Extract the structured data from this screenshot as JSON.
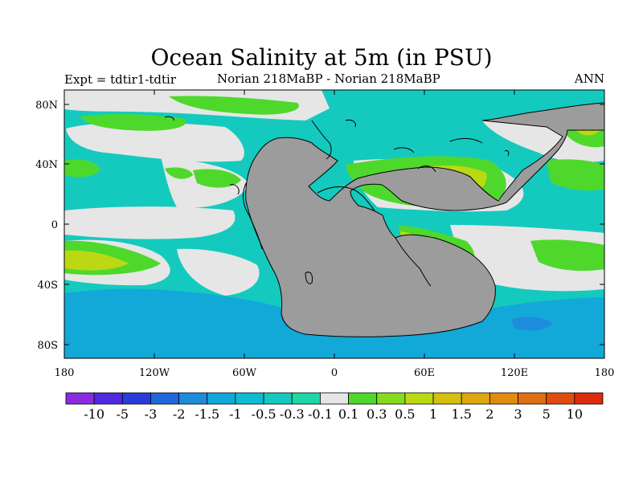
{
  "figure": {
    "title": "Ocean Salinity at 5m (in PSU)",
    "left_label": "Expt = tdtir1-tdtir",
    "center_label": "Norian   218MaBP - Norian   218MaBP",
    "right_label": "ANN"
  },
  "axes": {
    "lat_ticks": [
      "80N",
      "40N",
      "0",
      "40S",
      "80S"
    ],
    "lon_ticks": [
      "180",
      "120W",
      "60W",
      "0",
      "60E",
      "120E",
      "180"
    ]
  },
  "colorbar": {
    "labels": [
      "-10",
      "-5",
      "-3",
      "-2",
      "-1.5",
      "-1",
      "-0.5",
      "-0.3",
      "-0.1",
      "0.1",
      "0.3",
      "0.5",
      "1",
      "1.5",
      "2",
      "3",
      "5",
      "10"
    ],
    "colors": [
      "#8a2be2",
      "#5028e0",
      "#2a3bdc",
      "#1e66dc",
      "#1e8cdc",
      "#12a8d8",
      "#0fbcd4",
      "#14cabe",
      "#1fd6a6",
      "#e6e6e6",
      "#4fd82c",
      "#86dc1c",
      "#bcd814",
      "#d4c010",
      "#dca80e",
      "#e08c10",
      "#e06e12",
      "#e04c10",
      "#dc2c0c"
    ]
  },
  "colors": {
    "land": "#9c9c9c",
    "near_zero": "#e6e6e6",
    "ocean_neg": "#14cabe",
    "ocean_deep_neg": "#12a8d8",
    "ocean_pos": "#4fd82c",
    "ocean_high": "#bcd814"
  }
}
